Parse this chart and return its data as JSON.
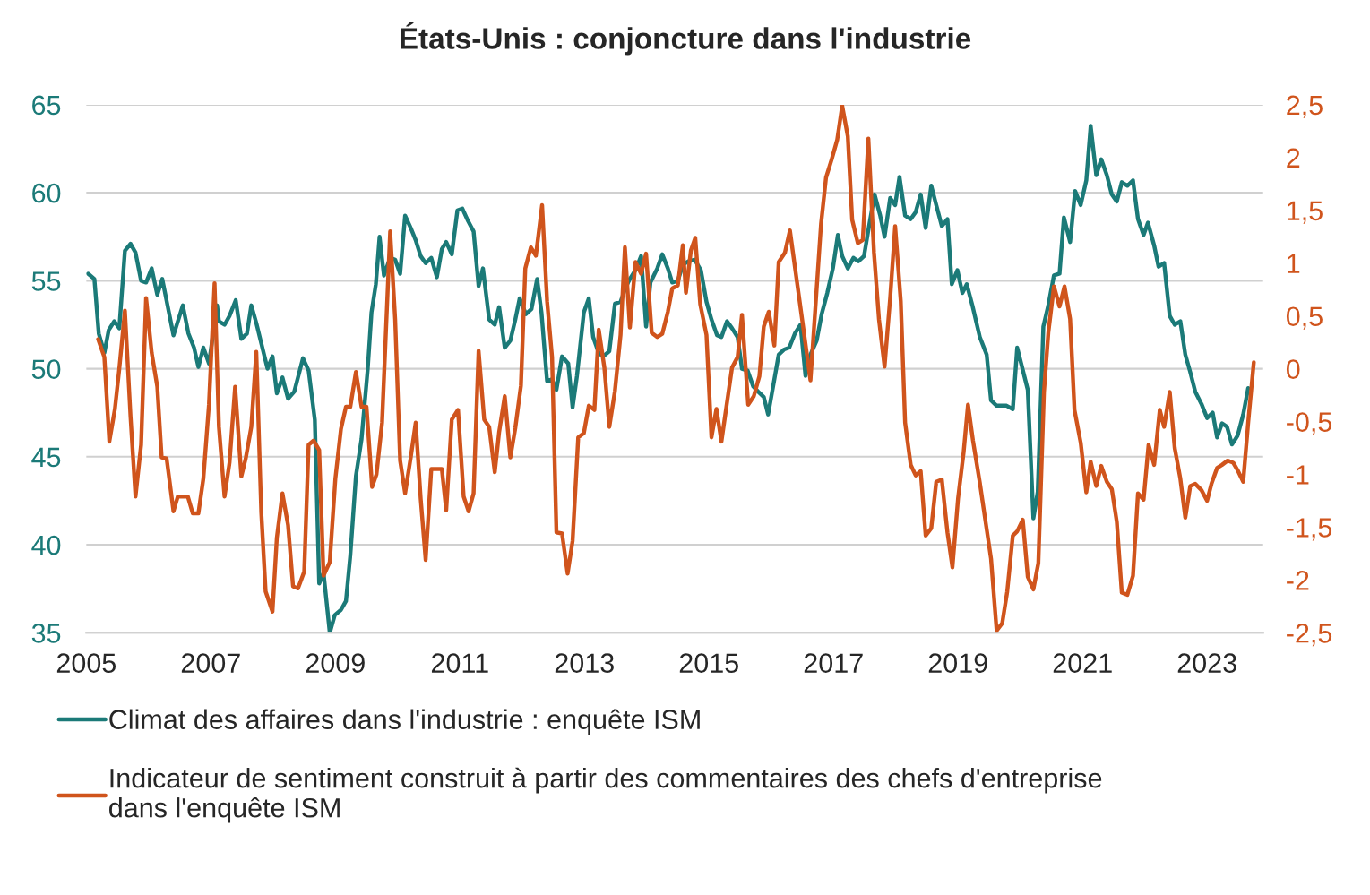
{
  "chart_data": {
    "type": "line",
    "title": "États-Unis : conjoncture dans l'industrie",
    "xlim": [
      2005,
      2023.9
    ],
    "xticks": [
      2005,
      2007,
      2009,
      2011,
      2013,
      2015,
      2017,
      2019,
      2021,
      2023
    ],
    "ylim": [
      35,
      65
    ],
    "yticks": [
      35,
      40,
      45,
      50,
      55,
      60,
      65
    ],
    "y2lim": [
      -2.5,
      2.5
    ],
    "y2ticks": [
      {
        "value": -2.5,
        "label": "-2,5"
      },
      {
        "value": -2,
        "label": "-2"
      },
      {
        "value": -1.5,
        "label": "-1,5"
      },
      {
        "value": -1,
        "label": "-1"
      },
      {
        "value": -0.5,
        "label": "-0,5"
      },
      {
        "value": 0,
        "label": "0"
      },
      {
        "value": 0.5,
        "label": "0,5"
      },
      {
        "value": 1,
        "label": "1"
      },
      {
        "value": 1.5,
        "label": "1,5"
      },
      {
        "value": 2,
        "label": "2"
      },
      {
        "value": 2.5,
        "label": "2,5"
      }
    ],
    "grid": "y",
    "legend": "bottom",
    "line_style": "solid",
    "series": [
      {
        "name": "Climat des affaires dans l'industrie : enquête ISM",
        "color": "#1b7a78",
        "axis": "y",
        "x": [
          2005.03,
          2005.13,
          2005.2,
          2005.29,
          2005.36,
          2005.45,
          2005.53,
          2005.62,
          2005.71,
          2005.79,
          2005.88,
          2005.96,
          2006.05,
          2006.14,
          2006.22,
          2006.4,
          2006.55,
          2006.64,
          2006.73,
          2006.8,
          2006.88,
          2006.97,
          2007.1,
          2007.13,
          2007.22,
          2007.3,
          2007.4,
          2007.49,
          2007.58,
          2007.65,
          2007.73,
          2007.91,
          2007.99,
          2008.06,
          2008.15,
          2008.24,
          2008.34,
          2008.48,
          2008.57,
          2008.67,
          2008.74,
          2008.81,
          2008.91,
          2008.99,
          2009.09,
          2009.17,
          2009.24,
          2009.33,
          2009.42,
          2009.52,
          2009.58,
          2009.65,
          2009.71,
          2009.78,
          2009.88,
          2009.96,
          2010.04,
          2010.12,
          2010.21,
          2010.29,
          2010.37,
          2010.45,
          2010.54,
          2010.63,
          2010.71,
          2010.78,
          2010.87,
          2010.96,
          2011.04,
          2011.13,
          2011.22,
          2011.3,
          2011.37,
          2011.47,
          2011.56,
          2011.63,
          2011.72,
          2011.81,
          2011.89,
          2011.96,
          2012.06,
          2012.15,
          2012.24,
          2012.31,
          2012.4,
          2012.48,
          2012.55,
          2012.64,
          2012.74,
          2012.81,
          2012.88,
          2012.99,
          2013.07,
          2013.14,
          2013.23,
          2013.3,
          2013.4,
          2013.49,
          2013.58,
          2013.66,
          2013.73,
          2013.82,
          2013.91,
          2013.99,
          2014.06,
          2014.17,
          2014.25,
          2014.34,
          2014.41,
          2014.5,
          2014.58,
          2014.67,
          2014.77,
          2014.87,
          2014.96,
          2015.04,
          2015.13,
          2015.2,
          2015.29,
          2015.37,
          2015.46,
          2015.53,
          2015.62,
          2015.71,
          2015.79,
          2015.88,
          2015.95,
          2016.04,
          2016.12,
          2016.21,
          2016.29,
          2016.38,
          2016.47,
          2016.55,
          2016.63,
          2016.73,
          2016.81,
          2016.9,
          2016.99,
          2017.07,
          2017.14,
          2017.23,
          2017.32,
          2017.4,
          2017.49,
          2017.58,
          2017.66,
          2017.75,
          2017.82,
          2017.91,
          2017.99,
          2018.06,
          2018.15,
          2018.24,
          2018.32,
          2018.4,
          2018.48,
          2018.57,
          2018.65,
          2018.74,
          2018.83,
          2018.9,
          2018.99,
          2019.07,
          2019.14,
          2019.23,
          2019.35,
          2019.46,
          2019.53,
          2019.62,
          2019.78,
          2019.88,
          2019.95,
          2020.12,
          2020.21,
          2020.28,
          2020.37,
          2020.45,
          2020.54,
          2020.63,
          2020.7,
          2020.8,
          2020.88,
          2020.97,
          2021.06,
          2021.13,
          2021.22,
          2021.3,
          2021.39,
          2021.47,
          2021.55,
          2021.63,
          2021.72,
          2021.81,
          2021.89,
          2021.98,
          2022.05,
          2022.15,
          2022.22,
          2022.31,
          2022.4,
          2022.48,
          2022.57,
          2022.65,
          2022.73,
          2022.81,
          2022.91,
          2023.0,
          2023.09,
          2023.16,
          2023.24,
          2023.32,
          2023.4,
          2023.49,
          2023.58,
          2023.66
        ],
        "values": [
          55.4,
          55.1,
          52.0,
          50.9,
          52.2,
          52.7,
          52.3,
          56.7,
          57.1,
          56.6,
          55.0,
          54.9,
          55.7,
          54.2,
          55.1,
          51.9,
          53.6,
          52.0,
          51.2,
          50.1,
          51.2,
          50.3,
          53.6,
          52.7,
          52.5,
          53.0,
          53.9,
          51.7,
          52.0,
          53.6,
          52.6,
          50.0,
          50.7,
          48.6,
          49.5,
          48.3,
          48.7,
          50.6,
          49.9,
          47.1,
          37.8,
          38.4,
          35.0,
          36.0,
          36.3,
          36.8,
          39.4,
          43.9,
          46.0,
          50.0,
          53.2,
          54.8,
          57.5,
          55.3,
          56.3,
          56.2,
          55.4,
          58.7,
          58.0,
          57.3,
          56.4,
          56.0,
          56.3,
          55.2,
          56.8,
          57.2,
          56.5,
          59.0,
          59.1,
          58.4,
          57.8,
          54.7,
          55.7,
          52.8,
          52.5,
          53.5,
          51.2,
          51.6,
          52.8,
          54.0,
          53.1,
          53.4,
          55.1,
          53.2,
          49.3,
          49.4,
          48.8,
          50.7,
          50.3,
          47.8,
          49.6,
          53.2,
          54.0,
          51.8,
          50.9,
          50.7,
          51.0,
          53.7,
          53.8,
          54.6,
          55.1,
          55.6,
          56.4,
          52.4,
          54.9,
          55.7,
          56.5,
          55.7,
          54.9,
          55.0,
          55.9,
          56.1,
          56.2,
          55.6,
          53.8,
          52.8,
          51.9,
          51.8,
          52.7,
          52.3,
          51.8,
          50.0,
          49.9,
          49.0,
          48.7,
          48.4,
          47.4,
          49.2,
          50.8,
          51.1,
          51.2,
          52.0,
          52.5,
          49.6,
          50.8,
          51.6,
          53.1,
          54.3,
          55.7,
          57.6,
          56.4,
          55.7,
          56.3,
          56.1,
          56.4,
          58.3,
          59.9,
          58.7,
          57.5,
          59.7,
          59.3,
          60.9,
          58.7,
          58.5,
          58.9,
          59.9,
          58.0,
          60.4,
          59.3,
          58.1,
          58.5,
          54.8,
          55.6,
          54.3,
          54.8,
          53.6,
          51.8,
          50.8,
          48.2,
          47.9,
          47.9,
          47.7,
          51.2,
          48.8,
          41.5,
          43.0,
          52.4,
          53.6,
          55.3,
          55.4,
          58.6,
          57.2,
          60.1,
          59.3,
          60.7,
          63.8,
          61.0,
          61.9,
          61.0,
          59.9,
          59.5,
          60.6,
          60.4,
          60.7,
          58.5,
          57.6,
          58.3,
          57.0,
          55.8,
          56.0,
          53.0,
          52.5,
          52.7,
          50.8,
          49.8,
          48.7,
          48.0,
          47.2,
          47.5,
          46.1,
          46.9,
          46.7,
          45.7,
          46.2,
          47.4,
          48.9
        ]
      },
      {
        "name": "Indicateur de sentiment construit à partir des commentaires des chefs d'entreprise\ndans l'enquête ISM",
        "color": "#d0541c",
        "axis": "y2",
        "x": [
          2005.19,
          2005.29,
          2005.37,
          2005.46,
          2005.53,
          2005.62,
          2005.71,
          2005.79,
          2005.88,
          2005.96,
          2006.05,
          2006.14,
          2006.21,
          2006.29,
          2006.4,
          2006.47,
          2006.63,
          2006.71,
          2006.8,
          2006.88,
          2006.97,
          2007.06,
          2007.13,
          2007.22,
          2007.3,
          2007.39,
          2007.49,
          2007.56,
          2007.65,
          2007.73,
          2007.81,
          2007.88,
          2007.99,
          2008.06,
          2008.15,
          2008.24,
          2008.32,
          2008.4,
          2008.5,
          2008.57,
          2008.65,
          2008.74,
          2008.81,
          2008.91,
          2009.0,
          2009.09,
          2009.17,
          2009.24,
          2009.33,
          2009.42,
          2009.5,
          2009.59,
          2009.66,
          2009.75,
          2009.88,
          2009.96,
          2010.04,
          2010.12,
          2010.21,
          2010.29,
          2010.37,
          2010.45,
          2010.54,
          2010.71,
          2010.78,
          2010.87,
          2010.97,
          2011.06,
          2011.14,
          2011.22,
          2011.3,
          2011.39,
          2011.47,
          2011.56,
          2011.63,
          2011.72,
          2011.81,
          2011.89,
          2011.98,
          2012.05,
          2012.14,
          2012.22,
          2012.32,
          2012.4,
          2012.48,
          2012.55,
          2012.64,
          2012.73,
          2012.81,
          2012.9,
          2012.99,
          2013.07,
          2013.16,
          2013.23,
          2013.32,
          2013.4,
          2013.49,
          2013.58,
          2013.65,
          2013.73,
          2013.82,
          2013.91,
          2013.99,
          2014.08,
          2014.17,
          2014.25,
          2014.34,
          2014.41,
          2014.5,
          2014.58,
          2014.63,
          2014.71,
          2014.78,
          2014.86,
          2014.96,
          2015.04,
          2015.12,
          2015.2,
          2015.37,
          2015.46,
          2015.53,
          2015.63,
          2015.72,
          2015.81,
          2015.88,
          2015.96,
          2016.05,
          2016.12,
          2016.22,
          2016.3,
          2016.63,
          2016.8,
          2016.88,
          2016.97,
          2017.06,
          2017.14,
          2017.23,
          2017.3,
          2017.39,
          2017.47,
          2017.56,
          2017.65,
          2017.73,
          2017.82,
          2017.91,
          2017.99,
          2018.08,
          2018.15,
          2018.24,
          2018.32,
          2018.4,
          2018.48,
          2018.57,
          2018.65,
          2018.74,
          2018.83,
          2018.91,
          2019.0,
          2019.09,
          2019.16,
          2019.24,
          2019.35,
          2019.53,
          2019.62,
          2019.71,
          2019.79,
          2019.88,
          2019.95,
          2020.04,
          2020.12,
          2020.21,
          2020.29,
          2020.38,
          2020.45,
          2020.54,
          2020.63,
          2020.71,
          2020.8,
          2020.87,
          2020.97,
          2021.06,
          2021.13,
          2021.22,
          2021.3,
          2021.39,
          2021.47,
          2021.55,
          2021.63,
          2021.72,
          2021.81,
          2021.89,
          2021.98,
          2022.06,
          2022.15,
          2022.24,
          2022.31,
          2022.4,
          2022.48,
          2022.57,
          2022.65,
          2022.73,
          2022.81,
          2022.91,
          2023.0,
          2023.07,
          2023.16,
          2023.24,
          2023.33,
          2023.42,
          2023.49,
          2023.58,
          2023.66,
          2023.75
        ],
        "values": [
          0.28,
          0.11,
          -0.69,
          -0.38,
          0.0,
          0.55,
          -0.45,
          -1.21,
          -0.72,
          0.67,
          0.15,
          -0.17,
          -0.84,
          -0.85,
          -1.35,
          -1.21,
          -1.21,
          -1.37,
          -1.37,
          -1.04,
          -0.34,
          0.81,
          -0.55,
          -1.21,
          -0.89,
          -0.17,
          -1.02,
          -0.85,
          -0.55,
          0.16,
          -1.36,
          -2.11,
          -2.3,
          -1.6,
          -1.18,
          -1.48,
          -2.06,
          -2.08,
          -1.92,
          -0.72,
          -0.68,
          -0.77,
          -1.96,
          -1.83,
          -1.04,
          -0.57,
          -0.36,
          -0.36,
          -0.03,
          -0.36,
          -0.36,
          -1.12,
          -1.0,
          -0.51,
          1.3,
          0.47,
          -0.87,
          -1.18,
          -0.84,
          -0.51,
          -1.23,
          -1.81,
          -0.95,
          -0.95,
          -1.34,
          -0.48,
          -0.39,
          -1.21,
          -1.35,
          -1.18,
          0.17,
          -0.48,
          -0.55,
          -0.98,
          -0.6,
          -0.26,
          -0.84,
          -0.56,
          -0.16,
          0.95,
          1.15,
          1.07,
          1.55,
          0.64,
          0.11,
          -1.55,
          -1.56,
          -1.94,
          -1.63,
          -0.65,
          -0.61,
          -0.35,
          -0.39,
          0.37,
          0.01,
          -0.55,
          -0.21,
          0.32,
          1.15,
          0.39,
          1.01,
          0.9,
          1.09,
          0.34,
          0.3,
          0.33,
          0.54,
          0.76,
          0.79,
          1.17,
          0.72,
          1.12,
          1.24,
          0.61,
          0.32,
          -0.65,
          -0.38,
          -0.69,
          0.01,
          0.11,
          0.51,
          -0.34,
          -0.26,
          -0.07,
          0.4,
          0.54,
          0.22,
          1.01,
          1.1,
          1.31,
          -0.11,
          1.37,
          1.81,
          1.98,
          2.17,
          2.49,
          2.2,
          1.41,
          1.19,
          1.22,
          2.18,
          1.1,
          0.47,
          0.02,
          0.67,
          1.35,
          0.64,
          -0.51,
          -0.91,
          -1.01,
          -0.97,
          -1.58,
          -1.51,
          -1.07,
          -1.05,
          -1.55,
          -1.88,
          -1.23,
          -0.79,
          -0.34,
          -0.68,
          -1.08,
          -1.8,
          -2.48,
          -2.41,
          -2.11,
          -1.58,
          -1.54,
          -1.43,
          -1.97,
          -2.09,
          -1.84,
          -0.22,
          0.34,
          0.78,
          0.59,
          0.78,
          0.47,
          -0.39,
          -0.7,
          -1.17,
          -0.88,
          -1.11,
          -0.92,
          -1.07,
          -1.14,
          -1.45,
          -2.12,
          -2.14,
          -1.96,
          -1.18,
          -1.24,
          -0.72,
          -0.91,
          -0.39,
          -0.55,
          -0.22,
          -0.75,
          -1.04,
          -1.41,
          -1.11,
          -1.09,
          -1.15,
          -1.25,
          -1.09,
          -0.94,
          -0.91,
          -0.87,
          -0.89,
          -0.96,
          -1.07,
          -0.51,
          0.06
        ]
      }
    ]
  }
}
